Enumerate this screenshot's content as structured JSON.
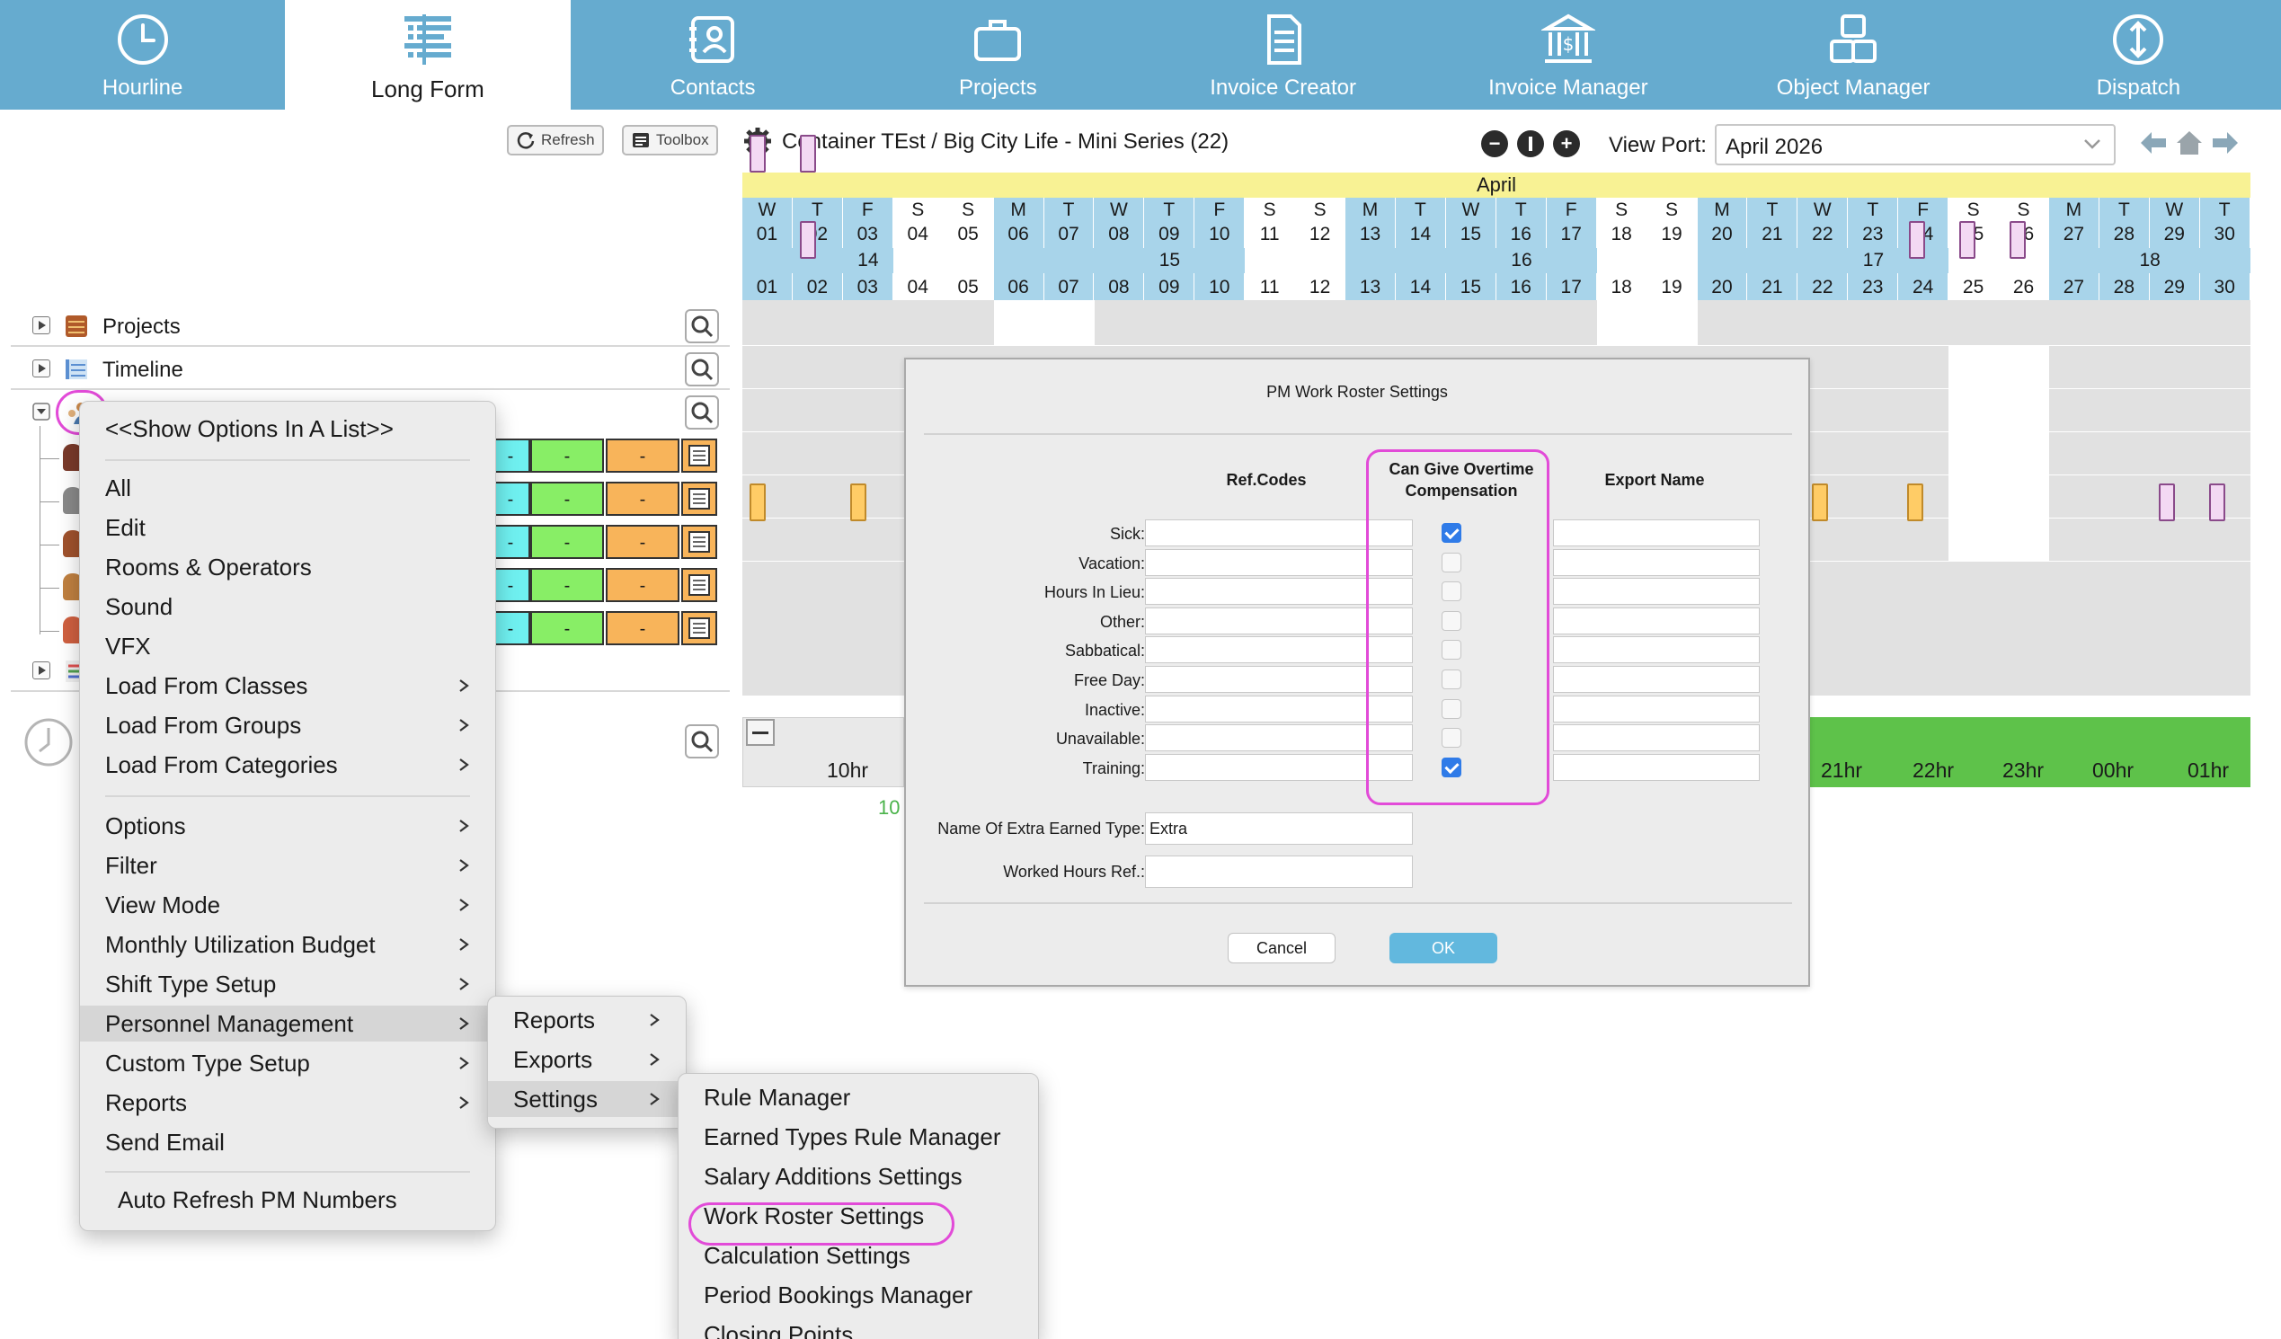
{
  "nav": {
    "tabs": [
      {
        "label": "Hourline",
        "icon": "clock-icon"
      },
      {
        "label": "Long Form",
        "icon": "list-form-icon"
      },
      {
        "label": "Contacts",
        "icon": "contacts-icon"
      },
      {
        "label": "Projects",
        "icon": "briefcase-icon"
      },
      {
        "label": "Invoice Creator",
        "icon": "document-icon"
      },
      {
        "label": "Invoice Manager",
        "icon": "bank-icon"
      },
      {
        "label": "Object Manager",
        "icon": "objects-icon"
      },
      {
        "label": "Dispatch",
        "icon": "dispatch-icon"
      }
    ],
    "active": "Long Form"
  },
  "toolbar": {
    "refresh_label": "Refresh",
    "toolbox_label": "Toolbox",
    "breadcrumb": "Container TEst / Big City Life - Mini Series (22)",
    "viewport_label": "View Port:",
    "viewport_value": "April 2026"
  },
  "calendar": {
    "month": "April",
    "days": [
      {
        "dow": "W",
        "day": "01"
      },
      {
        "dow": "T",
        "day": "02"
      },
      {
        "dow": "F",
        "day": "03"
      },
      {
        "dow": "S",
        "day": "04"
      },
      {
        "dow": "S",
        "day": "05"
      },
      {
        "dow": "M",
        "day": "06"
      },
      {
        "dow": "T",
        "day": "07"
      },
      {
        "dow": "W",
        "day": "08"
      },
      {
        "dow": "T",
        "day": "09"
      },
      {
        "dow": "F",
        "day": "10"
      },
      {
        "dow": "S",
        "day": "11"
      },
      {
        "dow": "S",
        "day": "12"
      },
      {
        "dow": "M",
        "day": "13"
      },
      {
        "dow": "T",
        "day": "14"
      },
      {
        "dow": "W",
        "day": "15"
      },
      {
        "dow": "T",
        "day": "16"
      },
      {
        "dow": "F",
        "day": "17"
      },
      {
        "dow": "S",
        "day": "18"
      },
      {
        "dow": "S",
        "day": "19"
      },
      {
        "dow": "M",
        "day": "20"
      },
      {
        "dow": "T",
        "day": "21"
      },
      {
        "dow": "W",
        "day": "22"
      },
      {
        "dow": "T",
        "day": "23"
      },
      {
        "dow": "F",
        "day": "24"
      },
      {
        "dow": "S",
        "day": "25"
      },
      {
        "dow": "S",
        "day": "26"
      },
      {
        "dow": "M",
        "day": "27"
      },
      {
        "dow": "T",
        "day": "28"
      },
      {
        "dow": "W",
        "day": "29"
      },
      {
        "dow": "T",
        "day": "30"
      }
    ],
    "weeks": [
      "14",
      "15",
      "16",
      "17",
      "18"
    ],
    "hours": [
      "10hr",
      "21hr",
      "22hr",
      "23hr",
      "00hr",
      "01hr"
    ],
    "green_hint": "10"
  },
  "tree": {
    "projects_label": "Projects",
    "timeline_label": "Timeline",
    "person_cell_text": "-"
  },
  "context_menu": {
    "show_options": "<<Show Options In A List>>",
    "items_group1": [
      "All",
      "Edit",
      "Rooms & Operators",
      "Sound",
      "VFX",
      "Load From Classes",
      "Load From Groups",
      "Load From Categories"
    ],
    "items_group2": [
      "Options",
      "Filter",
      "View Mode",
      "Monthly Utilization Budget",
      "Shift Type Setup",
      "Personnel Management",
      "Custom Type Setup",
      "Reports",
      "Send Email"
    ],
    "auto_refresh": "Auto Refresh PM Numbers"
  },
  "submenu_pm": [
    "Reports",
    "Exports",
    "Settings"
  ],
  "submenu_settings": [
    "Rule Manager",
    "Earned Types Rule Manager",
    "Salary Additions Settings",
    "Work Roster Settings",
    "Calculation Settings",
    "Period Bookings Manager",
    "Closing Points"
  ],
  "dialog": {
    "title": "PM Work Roster Settings",
    "col_refcodes": "Ref.Codes",
    "col_overtime": "Can Give Overtime Compensation",
    "col_export": "Export Name",
    "rows": [
      {
        "label": "Sick:",
        "checked": true
      },
      {
        "label": "Vacation:",
        "checked": false
      },
      {
        "label": "Hours In Lieu:",
        "checked": false
      },
      {
        "label": "Other:",
        "checked": false
      },
      {
        "label": "Sabbatical:",
        "checked": false
      },
      {
        "label": "Free Day:",
        "checked": false
      },
      {
        "label": "Inactive:",
        "checked": false
      },
      {
        "label": "Unavailable:",
        "checked": false
      },
      {
        "label": "Training:",
        "checked": true
      }
    ],
    "extra_name_label": "Name Of Extra Earned Type:",
    "extra_name_value": "Extra",
    "worked_hours_label": "Worked Hours Ref.:",
    "worked_hours_value": "",
    "cancel_label": "Cancel",
    "ok_label": "OK"
  },
  "colors": {
    "nav_bg": "#66abcf",
    "highlight_ring": "#e24bd8",
    "ok_button": "#62b8de",
    "hours_green": "#5ec24a"
  }
}
